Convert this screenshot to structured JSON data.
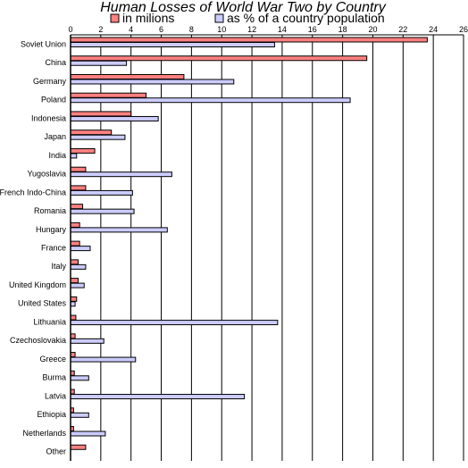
{
  "chart_data": {
    "type": "bar",
    "orientation": "horizontal",
    "title": "Human Losses of World War Two by Country",
    "categories": [
      "Soviet Union",
      "China",
      "Germany",
      "Poland",
      "Indonesia",
      "Japan",
      "India",
      "Yugoslavia",
      "French Indo-China",
      "Romania",
      "Hungary",
      "France",
      "Italy",
      "United Kingdom",
      "United States",
      "Lithuania",
      "Czechoslovakia",
      "Greece",
      "Burma",
      "Latvia",
      "Ethiopia",
      "Netherlands",
      "Other"
    ],
    "series": [
      {
        "name": "in milions",
        "color": "#ff8080",
        "values": [
          23.6,
          19.6,
          7.5,
          5.0,
          4.0,
          2.7,
          1.6,
          1.0,
          1.0,
          0.8,
          0.6,
          0.6,
          0.5,
          0.5,
          0.4,
          0.35,
          0.3,
          0.3,
          0.25,
          0.25,
          0.2,
          0.2,
          1.0
        ]
      },
      {
        "name": "as % of a country population",
        "color": "#ccccff",
        "values": [
          13.5,
          3.7,
          10.8,
          18.5,
          5.8,
          3.6,
          0.4,
          6.7,
          4.1,
          4.2,
          6.4,
          1.3,
          1.0,
          0.9,
          0.3,
          13.7,
          2.2,
          4.3,
          1.2,
          11.5,
          1.2,
          2.3,
          0.0
        ]
      }
    ],
    "x_ticks": [
      "0",
      "2",
      "4",
      "6",
      "8",
      "10",
      "12",
      "14",
      "16",
      "18",
      "20",
      "22",
      "24",
      "26"
    ],
    "xlim": [
      0,
      26
    ],
    "grid": true,
    "legend_position": "top"
  }
}
